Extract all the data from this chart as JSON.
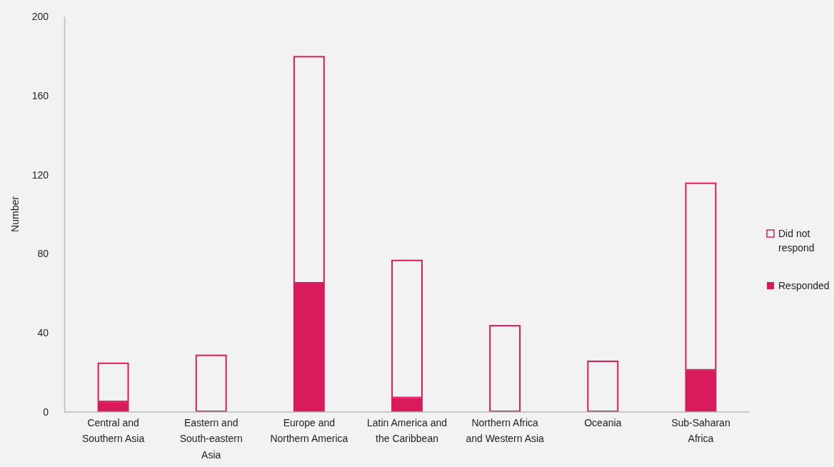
{
  "chart_data": {
    "type": "bar",
    "ylabel": "Number",
    "stacked": true,
    "categories": [
      "Central and Southern Asia",
      "Eastern and South-eastern Asia",
      "Europe and Northern America",
      "Latin America and the Caribbean",
      "Northern Africa and Western Asia",
      "Oceania",
      "Sub-Saharan Africa"
    ],
    "series": [
      {
        "name": "Responded",
        "color": "#d81b5c",
        "values": [
          5,
          0,
          65,
          7,
          0,
          0,
          21
        ]
      },
      {
        "name": "Did not respond",
        "color": "#f2f2f2",
        "values": [
          20,
          29,
          115,
          70,
          44,
          26,
          95
        ]
      }
    ],
    "ylim": [
      0,
      200
    ],
    "yticks": [
      0,
      40,
      80,
      120,
      160,
      200
    ],
    "grid": false,
    "legend": "right"
  }
}
